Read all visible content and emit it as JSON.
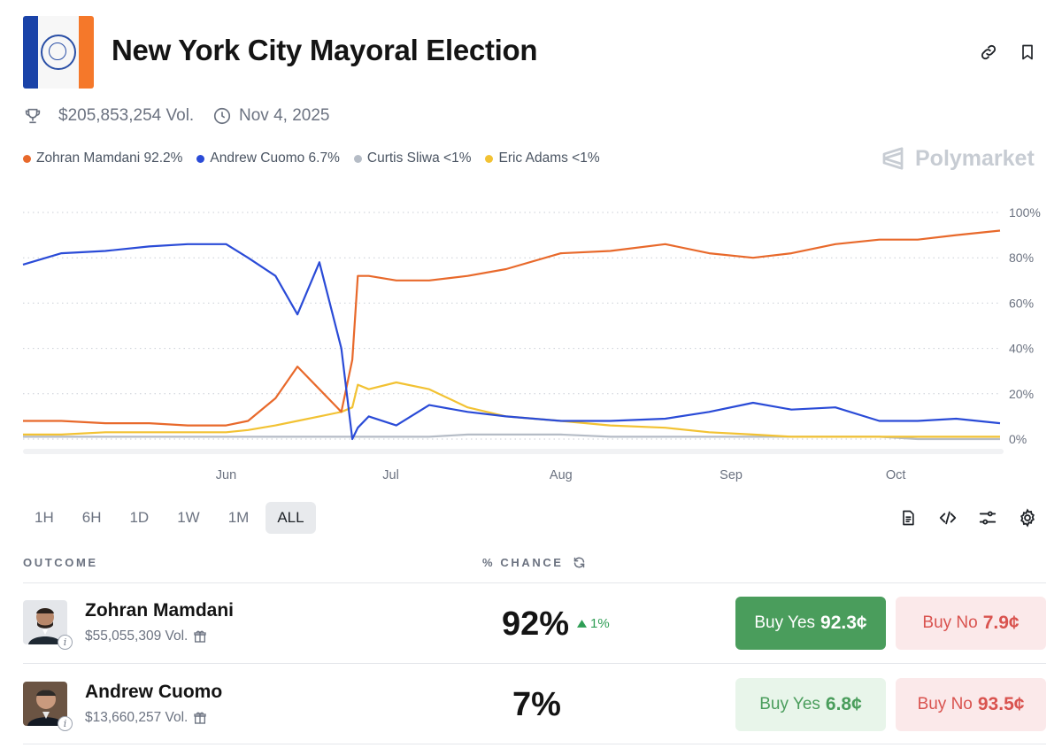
{
  "header": {
    "title": "New York City Mayoral Election",
    "volume": "$205,853,254 Vol.",
    "end_date": "Nov 4, 2025",
    "brand": "Polymarket"
  },
  "legend": [
    {
      "label": "Zohran Mamdani 92.2%",
      "color": "#e8692b"
    },
    {
      "label": "Andrew Cuomo 6.7%",
      "color": "#2a4bd7"
    },
    {
      "label": "Curtis Sliwa <1%",
      "color": "#b5bcc6"
    },
    {
      "label": "Eric Adams <1%",
      "color": "#f2c233"
    }
  ],
  "chart_data": {
    "type": "line",
    "x": [
      "2025-04-25",
      "2025-05-02",
      "2025-05-10",
      "2025-05-18",
      "2025-05-25",
      "2025-06-01",
      "2025-06-05",
      "2025-06-10",
      "2025-06-14",
      "2025-06-18",
      "2025-06-22",
      "2025-06-24",
      "2025-06-25",
      "2025-06-27",
      "2025-07-02",
      "2025-07-08",
      "2025-07-15",
      "2025-07-22",
      "2025-08-01",
      "2025-08-10",
      "2025-08-20",
      "2025-08-28",
      "2025-09-05",
      "2025-09-12",
      "2025-09-20",
      "2025-09-28",
      "2025-10-05",
      "2025-10-12",
      "2025-10-20"
    ],
    "series": [
      {
        "name": "Zohran Mamdani",
        "color": "#e8692b",
        "values": [
          8,
          8,
          7,
          7,
          6,
          6,
          8,
          18,
          32,
          22,
          12,
          35,
          72,
          72,
          70,
          70,
          72,
          75,
          82,
          83,
          86,
          82,
          80,
          82,
          86,
          88,
          88,
          90,
          92
        ]
      },
      {
        "name": "Andrew Cuomo",
        "color": "#2a4bd7",
        "values": [
          77,
          82,
          83,
          85,
          86,
          86,
          80,
          72,
          55,
          78,
          40,
          0,
          5,
          10,
          6,
          15,
          12,
          10,
          8,
          8,
          9,
          12,
          16,
          13,
          14,
          8,
          8,
          9,
          7
        ]
      },
      {
        "name": "Curtis Sliwa",
        "color": "#b5bcc6",
        "values": [
          1,
          1,
          1,
          1,
          1,
          1,
          1,
          1,
          1,
          1,
          1,
          1,
          1,
          1,
          1,
          1,
          2,
          2,
          2,
          1,
          1,
          1,
          1,
          1,
          1,
          1,
          0,
          0,
          0
        ]
      },
      {
        "name": "Eric Adams",
        "color": "#f2c233",
        "values": [
          2,
          2,
          3,
          3,
          3,
          3,
          4,
          6,
          8,
          10,
          12,
          14,
          24,
          22,
          25,
          22,
          14,
          10,
          8,
          6,
          5,
          3,
          2,
          1,
          1,
          1,
          1,
          1,
          1
        ]
      }
    ],
    "x_tick_labels": [
      "Jun",
      "Jul",
      "Aug",
      "Sep",
      "Oct"
    ],
    "y_tick_labels": [
      "100%",
      "80%",
      "60%",
      "40%",
      "20%",
      "0%"
    ],
    "ylim": [
      0,
      100
    ],
    "grid": "horizontal-dotted",
    "legend_position": "top-left"
  },
  "controls": {
    "ranges": [
      "1H",
      "6H",
      "1D",
      "1W",
      "1M",
      "ALL"
    ],
    "active_range": "ALL"
  },
  "table": {
    "col_outcome": "OUTCOME",
    "col_chance": "% CHANCE",
    "rows": [
      {
        "name": "Zohran Mamdani",
        "volume": "$55,055,309 Vol.",
        "chance": "92%",
        "delta": "1%",
        "buy_yes_label": "Buy Yes",
        "buy_yes_price": "92.3¢",
        "buy_no_label": "Buy No",
        "buy_no_price": "7.9¢"
      },
      {
        "name": "Andrew Cuomo",
        "volume": "$13,660,257 Vol.",
        "chance": "7%",
        "delta": "",
        "buy_yes_label": "Buy Yes",
        "buy_yes_price": "6.8¢",
        "buy_no_label": "Buy No",
        "buy_no_price": "93.5¢"
      }
    ]
  }
}
